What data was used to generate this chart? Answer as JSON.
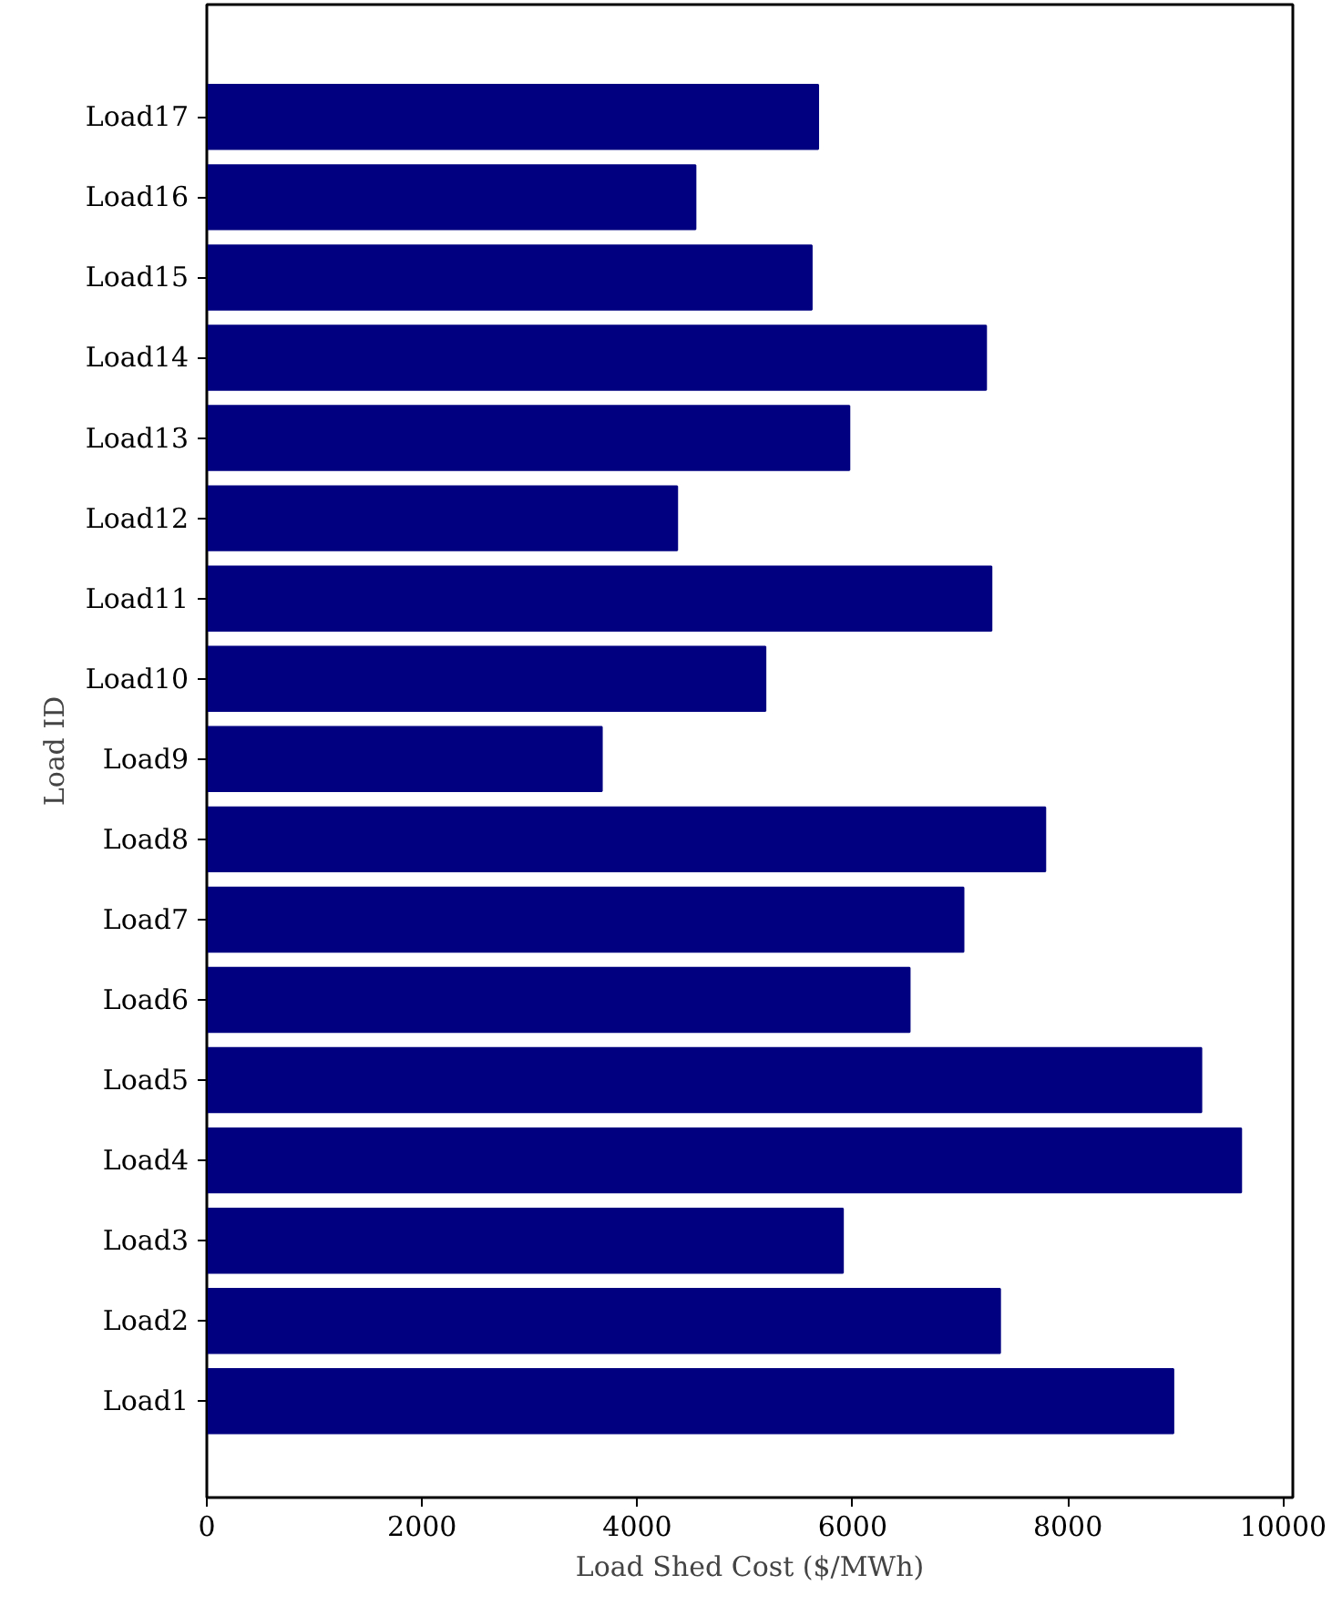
{
  "chart_data": {
    "type": "bar",
    "orientation": "horizontal",
    "xlabel": "Load Shed Cost ($/MWh)",
    "ylabel": "Load ID",
    "categories": [
      "Load17",
      "Load16",
      "Load15",
      "Load14",
      "Load13",
      "Load12",
      "Load11",
      "Load10",
      "Load9",
      "Load8",
      "Load7",
      "Load6",
      "Load5",
      "Load4",
      "Load3",
      "Load2",
      "Load1"
    ],
    "values": [
      5680,
      4540,
      5620,
      7240,
      5970,
      4370,
      7290,
      5190,
      3670,
      7790,
      7030,
      6530,
      9240,
      9610,
      5910,
      7370,
      8980
    ],
    "color": "#000080",
    "xlim": [
      0,
      10090
    ],
    "xticks": [
      0,
      2000,
      4000,
      6000,
      8000,
      10000
    ],
    "grid": false
  }
}
